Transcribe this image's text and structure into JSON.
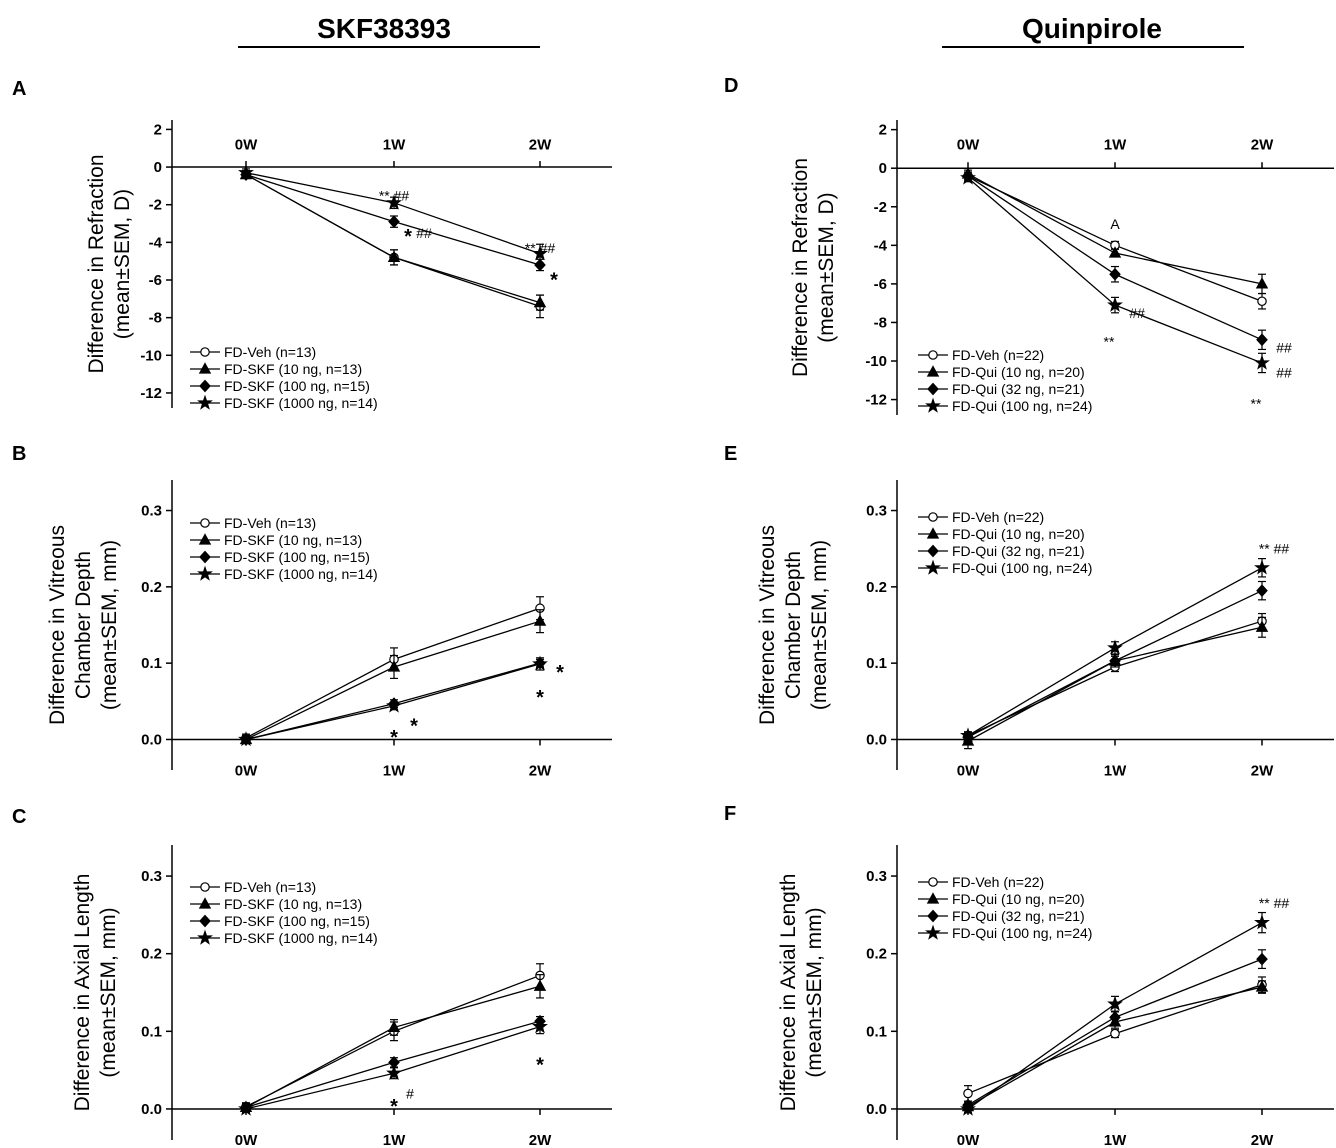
{
  "columns": [
    {
      "title": "SKF38393"
    },
    {
      "title": "Quinpirole"
    }
  ],
  "chart_data": [
    {
      "type": "line",
      "panel": "A",
      "ylabel_lines": [
        "Difference in Refraction",
        "(mean±SEM, D)"
      ],
      "x": [
        "0W",
        "1W",
        "2W"
      ],
      "xaxis_position": "top",
      "ylim": [
        -12.8,
        2.5
      ],
      "yticks": [
        2,
        0,
        -2,
        -4,
        -6,
        -8,
        -10,
        -12
      ],
      "legend": "bottom-left",
      "series": [
        {
          "name": "FD-Veh (n=13)",
          "marker": "open-circle",
          "values": [
            -0.4,
            -4.8,
            -7.4
          ],
          "errors": [
            0.2,
            0.4,
            0.6
          ]
        },
        {
          "name": "FD-SKF (10 ng, n=13)",
          "marker": "triangle",
          "values": [
            -0.4,
            -4.8,
            -7.2
          ],
          "errors": [
            0.2,
            0.4,
            0.4
          ]
        },
        {
          "name": "FD-SKF (100 ng, n=15)",
          "marker": "diamond",
          "values": [
            -0.4,
            -2.9,
            -5.2
          ],
          "errors": [
            0.2,
            0.3,
            0.3
          ]
        },
        {
          "name": "FD-SKF (1000 ng, n=14)",
          "marker": "star",
          "values": [
            -0.3,
            -1.9,
            -4.6
          ],
          "errors": [
            0.2,
            0.3,
            0.5
          ]
        }
      ],
      "annotations": [
        {
          "text": "** ##",
          "x": "1W",
          "y": -1.5,
          "size": "small"
        },
        {
          "text": "*",
          "x": "1W",
          "y": -3.4,
          "size": "big",
          "dx": 14
        },
        {
          "text": "##",
          "x": "1W",
          "y": -3.5,
          "size": "small",
          "dx": 30
        },
        {
          "text": "** ##",
          "x": "2W",
          "y": -4.3,
          "size": "small"
        },
        {
          "text": "*",
          "x": "2W",
          "y": -5.7,
          "size": "big",
          "dx": 14
        }
      ]
    },
    {
      "type": "line",
      "panel": "B",
      "ylabel_lines": [
        "Difference in Vitreous",
        "Chamber Depth",
        "(mean±SEM, mm)"
      ],
      "x": [
        "0W",
        "1W",
        "2W"
      ],
      "xaxis_position": "bottom",
      "ylim": [
        -0.04,
        0.34
      ],
      "yticks": [
        0.0,
        0.1,
        0.2,
        0.3
      ],
      "legend": "top-left",
      "series": [
        {
          "name": "FD-Veh (n=13)",
          "marker": "open-circle",
          "values": [
            0.002,
            0.105,
            0.172
          ],
          "errors": [
            0.005,
            0.015,
            0.015
          ]
        },
        {
          "name": "FD-SKF (10 ng, n=13)",
          "marker": "triangle",
          "values": [
            0.0,
            0.095,
            0.155
          ],
          "errors": [
            0.005,
            0.015,
            0.015
          ]
        },
        {
          "name": "FD-SKF (100 ng, n=15)",
          "marker": "diamond",
          "values": [
            0.0,
            0.047,
            0.1
          ],
          "errors": [
            0.004,
            0.005,
            0.005
          ]
        },
        {
          "name": "FD-SKF (1000 ng, n=14)",
          "marker": "star",
          "values": [
            0.0,
            0.044,
            0.099
          ],
          "errors": [
            0.004,
            0.005,
            0.008
          ]
        }
      ],
      "annotations": [
        {
          "text": "*",
          "x": "1W",
          "y": 0.01,
          "size": "big"
        },
        {
          "text": "*",
          "x": "1W",
          "y": 0.025,
          "size": "big",
          "dx": 20
        },
        {
          "text": "*",
          "x": "2W",
          "y": 0.095,
          "size": "big",
          "dx": 20
        },
        {
          "text": "*",
          "x": "2W",
          "y": 0.062,
          "size": "big"
        }
      ]
    },
    {
      "type": "line",
      "panel": "C",
      "ylabel_lines": [
        "Difference in Axial Length",
        "(mean±SEM, mm)"
      ],
      "x": [
        "0W",
        "1W",
        "2W"
      ],
      "xaxis_position": "bottom",
      "ylim": [
        -0.04,
        0.34
      ],
      "yticks": [
        0.0,
        0.1,
        0.2,
        0.3
      ],
      "legend": "top-left",
      "series": [
        {
          "name": "FD-Veh (n=13)",
          "marker": "open-circle",
          "values": [
            0.003,
            0.1,
            0.172
          ],
          "errors": [
            0.005,
            0.012,
            0.015
          ]
        },
        {
          "name": "FD-SKF (10 ng, n=13)",
          "marker": "triangle",
          "values": [
            0.002,
            0.105,
            0.158
          ],
          "errors": [
            0.005,
            0.01,
            0.015
          ]
        },
        {
          "name": "FD-SKF (100 ng, n=15)",
          "marker": "diamond",
          "values": [
            0.002,
            0.06,
            0.113
          ],
          "errors": [
            0.004,
            0.006,
            0.006
          ]
        },
        {
          "name": "FD-SKF (1000 ng, n=14)",
          "marker": "star",
          "values": [
            0.0,
            0.046,
            0.106
          ],
          "errors": [
            0.004,
            0.007,
            0.009
          ]
        }
      ],
      "annotations": [
        {
          "text": "*",
          "x": "1W",
          "y": 0.01,
          "size": "big"
        },
        {
          "text": "#",
          "x": "1W",
          "y": 0.02,
          "size": "small",
          "dx": 16
        },
        {
          "text": "*",
          "x": "2W",
          "y": 0.064,
          "size": "big"
        }
      ]
    },
    {
      "type": "line",
      "panel": "D",
      "ylabel_lines": [
        "Difference in Refraction",
        "(mean±SEM, D)"
      ],
      "x": [
        "0W",
        "1W",
        "2W"
      ],
      "xaxis_position": "top",
      "ylim": [
        -12.8,
        2.5
      ],
      "yticks": [
        2,
        0,
        -2,
        -4,
        -6,
        -8,
        -10,
        -12
      ],
      "legend": "bottom-left",
      "series": [
        {
          "name": "FD-Veh (n=22)",
          "marker": "open-circle",
          "values": [
            -0.4,
            -4.0,
            -6.9
          ],
          "errors": [
            0.2,
            0.2,
            0.4
          ]
        },
        {
          "name": "FD-Qui (10 ng, n=20)",
          "marker": "triangle",
          "values": [
            -0.3,
            -4.4,
            -6.0
          ],
          "errors": [
            0.2,
            0.2,
            0.5
          ]
        },
        {
          "name": "FD-Qui (32 ng, n=21)",
          "marker": "diamond",
          "values": [
            -0.4,
            -5.5,
            -8.9
          ],
          "errors": [
            0.2,
            0.4,
            0.5
          ]
        },
        {
          "name": "FD-Qui (100 ng, n=24)",
          "marker": "star",
          "values": [
            -0.5,
            -7.1,
            -10.1
          ],
          "errors": [
            0.2,
            0.4,
            0.5
          ]
        }
      ],
      "annotations": [
        {
          "text": "A",
          "x": "1W",
          "y": -2.9,
          "size": "small"
        },
        {
          "text": "##",
          "x": "1W",
          "y": -7.5,
          "size": "small",
          "dx": 22
        },
        {
          "text": "**",
          "x": "1W",
          "y": -9.0,
          "size": "small",
          "dx": -6
        },
        {
          "text": "##",
          "x": "2W",
          "y": -9.3,
          "size": "small",
          "dx": 22
        },
        {
          "text": "##",
          "x": "2W",
          "y": -10.6,
          "size": "small",
          "dx": 22
        },
        {
          "text": "**",
          "x": "2W",
          "y": -12.2,
          "size": "small",
          "dx": -6
        }
      ]
    },
    {
      "type": "line",
      "panel": "E",
      "ylabel_lines": [
        "Difference in Vitreous",
        "Chamber Depth",
        "(mean±SEM, mm)"
      ],
      "x": [
        "0W",
        "1W",
        "2W"
      ],
      "xaxis_position": "bottom",
      "ylim": [
        -0.04,
        0.34
      ],
      "yticks": [
        0.0,
        0.1,
        0.2,
        0.3
      ],
      "legend": "top-left",
      "series": [
        {
          "name": "FD-Veh (n=22)",
          "marker": "open-circle",
          "values": [
            0.005,
            0.095,
            0.155
          ],
          "errors": [
            0.005,
            0.006,
            0.01
          ]
        },
        {
          "name": "FD-Qui (10 ng, n=20)",
          "marker": "triangle",
          "values": [
            -0.002,
            0.103,
            0.147
          ],
          "errors": [
            0.01,
            0.006,
            0.013
          ]
        },
        {
          "name": "FD-Qui (32 ng, n=21)",
          "marker": "diamond",
          "values": [
            0.003,
            0.103,
            0.195
          ],
          "errors": [
            0.005,
            0.008,
            0.012
          ]
        },
        {
          "name": "FD-Qui (100 ng, n=24)",
          "marker": "star",
          "values": [
            0.005,
            0.12,
            0.225
          ],
          "errors": [
            0.005,
            0.008,
            0.012
          ]
        }
      ],
      "annotations": [
        {
          "text": "** ##",
          "x": "2W",
          "y": 0.25,
          "size": "small",
          "dx": 12
        }
      ]
    },
    {
      "type": "line",
      "panel": "F",
      "ylabel_lines": [
        "Difference in Axial Length",
        "(mean±SEM, mm)"
      ],
      "x": [
        "0W",
        "1W",
        "2W"
      ],
      "xaxis_position": "bottom",
      "ylim": [
        -0.04,
        0.34
      ],
      "yticks": [
        0.0,
        0.1,
        0.2,
        0.3
      ],
      "legend": "top-left",
      "series": [
        {
          "name": "FD-Veh (n=22)",
          "marker": "open-circle",
          "values": [
            0.02,
            0.097,
            0.16
          ],
          "errors": [
            0.01,
            0.005,
            0.01
          ]
        },
        {
          "name": "FD-Qui (10 ng, n=20)",
          "marker": "triangle",
          "values": [
            0.003,
            0.112,
            0.157
          ],
          "errors": [
            0.005,
            0.008,
            0.008
          ]
        },
        {
          "name": "FD-Qui (32 ng, n=21)",
          "marker": "diamond",
          "values": [
            0.005,
            0.118,
            0.193
          ],
          "errors": [
            0.005,
            0.008,
            0.012
          ]
        },
        {
          "name": "FD-Qui (100 ng, n=24)",
          "marker": "star",
          "values": [
            0.0,
            0.135,
            0.24
          ],
          "errors": [
            0.005,
            0.01,
            0.013
          ]
        }
      ],
      "annotations": [
        {
          "text": "** ##",
          "x": "2W",
          "y": 0.265,
          "size": "small",
          "dx": 12
        }
      ]
    }
  ]
}
